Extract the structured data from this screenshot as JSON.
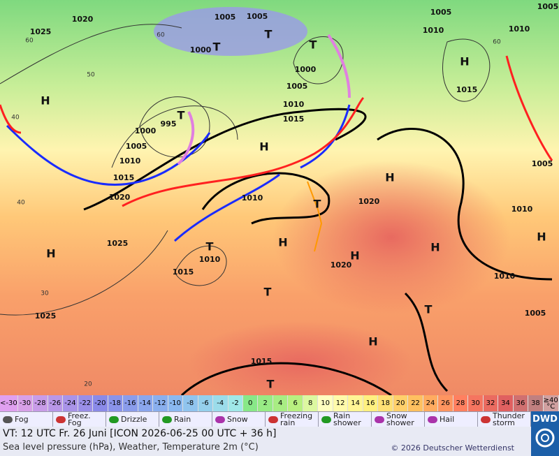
{
  "map": {
    "latitude_labels": [
      "60",
      "60",
      "60",
      "50",
      "40",
      "40",
      "30",
      "20"
    ],
    "pressure_labels": [
      "1020",
      "1025",
      "1005",
      "1005",
      "1000",
      "1005",
      "1005",
      "1010",
      "1010",
      "1000",
      "1005",
      "1010",
      "1015",
      "995",
      "1000",
      "1005",
      "1010",
      "1015",
      "1020",
      "1010",
      "1020",
      "1015",
      "1005",
      "1010",
      "1025",
      "1010",
      "1015",
      "1020",
      "1010",
      "1005",
      "1025",
      "1015"
    ],
    "high_labels": [
      "H",
      "H",
      "H",
      "H",
      "H",
      "H",
      "H",
      "H",
      "H",
      "H"
    ],
    "low_labels": [
      "T",
      "T",
      "T",
      "T",
      "T",
      "T",
      "T",
      "T",
      "T"
    ]
  },
  "temperature_scale": {
    "low": "<-30",
    "values": [
      -30,
      -28,
      -26,
      -24,
      -22,
      -20,
      -18,
      -16,
      -14,
      -12,
      -10,
      -8,
      -6,
      -4,
      -2,
      0,
      2,
      4,
      6,
      8,
      10,
      12,
      14,
      16,
      18,
      20,
      22,
      24,
      26,
      28,
      30,
      32,
      34,
      36,
      38
    ],
    "high": "≥40 °C"
  },
  "legend": [
    "Fog",
    "Freez. Fog",
    "Drizzle",
    "Rain",
    "Snow",
    "Freezing rain",
    "Rain shower",
    "Snow shower",
    "Hail",
    "Thunder storm"
  ],
  "footer": {
    "valid_time": "VT: 12 UTC Fr.  26 Juni [ICON 2026-06-25  00 UTC + 36 h]",
    "subtitle": "Sea level pressure (hPa), Weather, Temperature 2m (°C)",
    "copyright": "© 2026 Deutscher Wetterdienst",
    "logo": "DWD"
  }
}
